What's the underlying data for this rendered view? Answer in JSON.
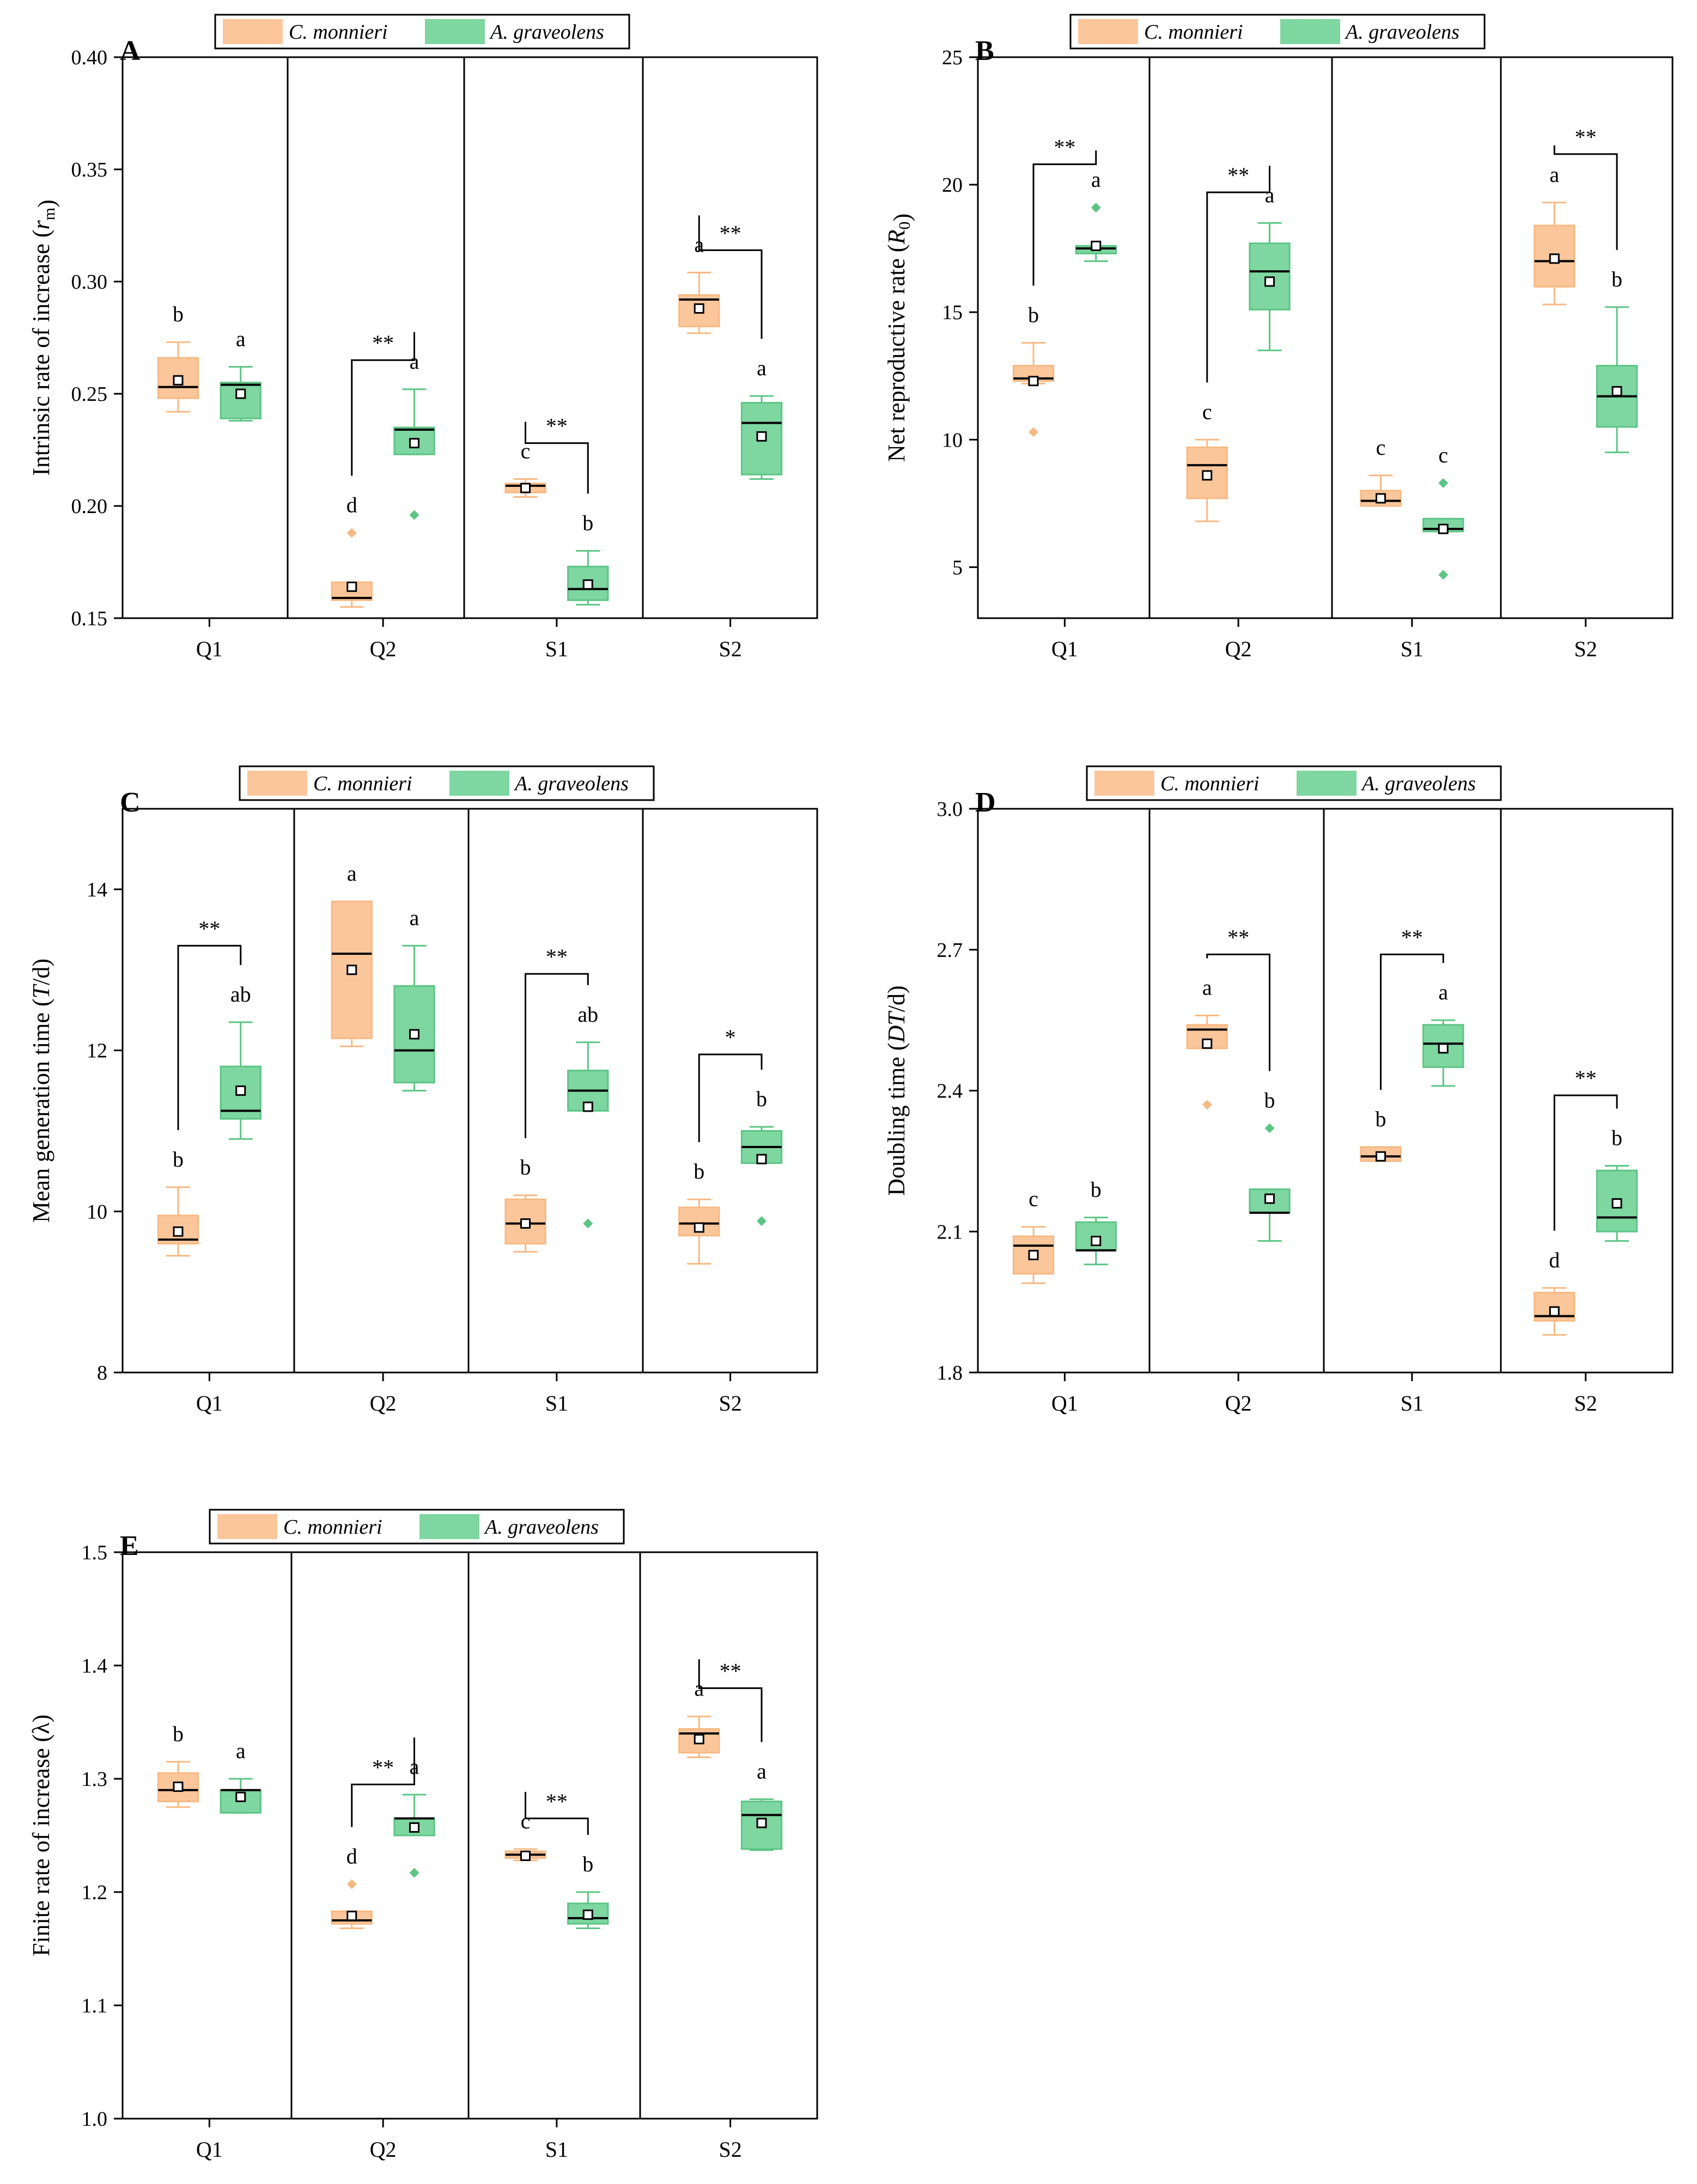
{
  "legend": {
    "series_a": "C. monnieri",
    "series_b": "A. graveolens"
  },
  "colors": {
    "series_a_fill": "#fcc69b",
    "series_a_stroke": "#f7b983",
    "series_b_fill": "#7ed6a0",
    "series_b_stroke": "#5cc585",
    "axis": "#000000"
  },
  "chart_data": [
    {
      "type": "box",
      "panel": "A",
      "categories": [
        "Q1",
        "Q2",
        "S1",
        "S2"
      ],
      "ylabel_pre": "Intrinsic rate of increase (",
      "ylabel_it": "r",
      "ylabel_sub": "m",
      "ylabel_post": ")",
      "ylim": [
        0.15,
        0.4
      ],
      "yticks": [
        "0.15",
        "0.20",
        "0.25",
        "0.30",
        "0.35",
        "0.40"
      ],
      "series": [
        {
          "name": "C. monnieri",
          "boxes": [
            {
              "min": 0.242,
              "q1": 0.248,
              "median": 0.253,
              "q3": 0.266,
              "max": 0.273,
              "mean": 0.256,
              "outliers": [],
              "letter": "b"
            },
            {
              "min": 0.155,
              "q1": 0.158,
              "median": 0.159,
              "q3": 0.166,
              "max": 0.166,
              "mean": 0.164,
              "outliers": [
                0.188
              ],
              "letter": "d"
            },
            {
              "min": 0.204,
              "q1": 0.206,
              "median": 0.209,
              "q3": 0.21,
              "max": 0.212,
              "mean": 0.208,
              "outliers": [],
              "letter": "c"
            },
            {
              "min": 0.277,
              "q1": 0.28,
              "median": 0.292,
              "q3": 0.294,
              "max": 0.304,
              "mean": 0.288,
              "outliers": [],
              "letter": "a"
            }
          ]
        },
        {
          "name": "A. graveolens",
          "boxes": [
            {
              "min": 0.238,
              "q1": 0.239,
              "median": 0.254,
              "q3": 0.255,
              "max": 0.262,
              "mean": 0.25,
              "outliers": [],
              "letter": "a"
            },
            {
              "min": 0.223,
              "q1": 0.223,
              "median": 0.234,
              "q3": 0.235,
              "max": 0.252,
              "mean": 0.228,
              "outliers": [
                0.196
              ],
              "letter": "a"
            },
            {
              "min": 0.156,
              "q1": 0.158,
              "median": 0.163,
              "q3": 0.173,
              "max": 0.18,
              "mean": 0.165,
              "outliers": [],
              "letter": "b"
            },
            {
              "min": 0.212,
              "q1": 0.214,
              "median": 0.237,
              "q3": 0.246,
              "max": 0.249,
              "mean": 0.231,
              "outliers": [],
              "letter": "a"
            }
          ]
        }
      ],
      "significance": [
        {
          "group": 1,
          "label": "**",
          "level": 0.265
        },
        {
          "group": 2,
          "label": "**",
          "level": 0.228
        },
        {
          "group": 3,
          "label": "**",
          "level": 0.314
        }
      ]
    },
    {
      "type": "box",
      "panel": "B",
      "categories": [
        "Q1",
        "Q2",
        "S1",
        "S2"
      ],
      "ylabel_pre": "Net reproductive rate (",
      "ylabel_it": "R",
      "ylabel_sub": "0",
      "ylabel_post": ")",
      "ylim": [
        3,
        25
      ],
      "yticks": [
        "5",
        "10",
        "15",
        "20",
        "25"
      ],
      "series": [
        {
          "name": "C. monnieri",
          "boxes": [
            {
              "min": 12.2,
              "q1": 12.3,
              "median": 12.4,
              "q3": 12.9,
              "max": 13.8,
              "mean": 12.3,
              "outliers": [
                10.3
              ],
              "letter": "b"
            },
            {
              "min": 6.8,
              "q1": 7.7,
              "median": 9.0,
              "q3": 9.7,
              "max": 10.0,
              "mean": 8.6,
              "outliers": [],
              "letter": "c"
            },
            {
              "min": 7.4,
              "q1": 7.4,
              "median": 7.6,
              "q3": 8.0,
              "max": 8.6,
              "mean": 7.7,
              "outliers": [],
              "letter": "c"
            },
            {
              "min": 15.3,
              "q1": 16.0,
              "median": 17.0,
              "q3": 18.4,
              "max": 19.3,
              "mean": 17.1,
              "outliers": [],
              "letter": "a"
            }
          ]
        },
        {
          "name": "A. graveolens",
          "boxes": [
            {
              "min": 17.0,
              "q1": 17.3,
              "median": 17.5,
              "q3": 17.6,
              "max": 17.6,
              "mean": 17.6,
              "outliers": [
                19.1
              ],
              "letter": "a"
            },
            {
              "min": 13.5,
              "q1": 15.1,
              "median": 16.6,
              "q3": 17.7,
              "max": 18.5,
              "mean": 16.2,
              "outliers": [],
              "letter": "a"
            },
            {
              "min": 6.4,
              "q1": 6.4,
              "median": 6.5,
              "q3": 6.9,
              "max": 6.9,
              "mean": 6.5,
              "outliers": [
                8.3,
                4.7
              ],
              "letter": "c"
            },
            {
              "min": 9.5,
              "q1": 10.5,
              "median": 11.7,
              "q3": 12.9,
              "max": 15.2,
              "mean": 11.9,
              "outliers": [],
              "letter": "b"
            }
          ]
        }
      ],
      "significance": [
        {
          "group": 0,
          "label": "**",
          "level": 20.8
        },
        {
          "group": 1,
          "label": "**",
          "level": 19.7
        },
        {
          "group": 3,
          "label": "**",
          "level": 21.2
        }
      ]
    },
    {
      "type": "box",
      "panel": "C",
      "categories": [
        "Q1",
        "Q2",
        "S1",
        "S2"
      ],
      "ylabel_pre": "Mean generation time (",
      "ylabel_it": "T",
      "ylabel_sub": "",
      "ylabel_post": "/d)",
      "ylim": [
        8,
        15
      ],
      "yticks": [
        "8",
        "10",
        "12",
        "14"
      ],
      "series": [
        {
          "name": "C. monnieri",
          "boxes": [
            {
              "min": 9.45,
              "q1": 9.6,
              "median": 9.65,
              "q3": 9.95,
              "max": 10.3,
              "mean": 9.75,
              "outliers": [],
              "letter": "b"
            },
            {
              "min": 12.05,
              "q1": 12.15,
              "median": 13.2,
              "q3": 13.85,
              "max": 13.85,
              "mean": 13.0,
              "outliers": [],
              "letter": "a"
            },
            {
              "min": 9.5,
              "q1": 9.6,
              "median": 9.85,
              "q3": 10.15,
              "max": 10.2,
              "mean": 9.85,
              "outliers": [],
              "letter": "b"
            },
            {
              "min": 9.35,
              "q1": 9.7,
              "median": 9.85,
              "q3": 10.05,
              "max": 10.15,
              "mean": 9.8,
              "outliers": [],
              "letter": "b"
            }
          ]
        },
        {
          "name": "A. graveolens",
          "boxes": [
            {
              "min": 10.9,
              "q1": 11.15,
              "median": 11.25,
              "q3": 11.8,
              "max": 12.35,
              "mean": 11.5,
              "outliers": [],
              "letter": "ab"
            },
            {
              "min": 11.5,
              "q1": 11.6,
              "median": 12.0,
              "q3": 12.8,
              "max": 13.3,
              "mean": 12.2,
              "outliers": [],
              "letter": "a"
            },
            {
              "min": 11.25,
              "q1": 11.25,
              "median": 11.5,
              "q3": 11.75,
              "max": 12.1,
              "mean": 11.3,
              "outliers": [
                9.85
              ],
              "letter": "ab"
            },
            {
              "min": 10.6,
              "q1": 10.6,
              "median": 10.8,
              "q3": 11.0,
              "max": 11.05,
              "mean": 10.65,
              "outliers": [
                9.88
              ],
              "letter": "b"
            }
          ]
        }
      ],
      "significance": [
        {
          "group": 0,
          "label": "**",
          "level": 13.3
        },
        {
          "group": 2,
          "label": "**",
          "level": 12.95
        },
        {
          "group": 3,
          "label": "*",
          "level": 11.95
        }
      ]
    },
    {
      "type": "box",
      "panel": "D",
      "categories": [
        "Q1",
        "Q2",
        "S1",
        "S2"
      ],
      "ylabel_pre": "Doubling time (",
      "ylabel_it": "DT",
      "ylabel_sub": "",
      "ylabel_post": "/d)",
      "ylim": [
        1.8,
        3.0
      ],
      "yticks": [
        "1.8",
        "2.1",
        "2.4",
        "2.7",
        "3.0"
      ],
      "series": [
        {
          "name": "C. monnieri",
          "boxes": [
            {
              "min": 1.99,
              "q1": 2.01,
              "median": 2.07,
              "q3": 2.09,
              "max": 2.11,
              "mean": 2.05,
              "outliers": [],
              "letter": "c"
            },
            {
              "min": 2.49,
              "q1": 2.49,
              "median": 2.53,
              "q3": 2.54,
              "max": 2.56,
              "mean": 2.5,
              "outliers": [
                2.37
              ],
              "letter": "a"
            },
            {
              "min": 2.25,
              "q1": 2.25,
              "median": 2.26,
              "q3": 2.28,
              "max": 2.28,
              "mean": 2.26,
              "outliers": [],
              "letter": "b"
            },
            {
              "min": 1.88,
              "q1": 1.91,
              "median": 1.92,
              "q3": 1.97,
              "max": 1.98,
              "mean": 1.93,
              "outliers": [],
              "letter": "d"
            }
          ]
        },
        {
          "name": "A. graveolens",
          "boxes": [
            {
              "min": 2.03,
              "q1": 2.06,
              "median": 2.06,
              "q3": 2.12,
              "max": 2.13,
              "mean": 2.08,
              "outliers": [],
              "letter": "b"
            },
            {
              "min": 2.08,
              "q1": 2.14,
              "median": 2.14,
              "q3": 2.19,
              "max": 2.19,
              "mean": 2.17,
              "outliers": [
                2.32
              ],
              "letter": "b"
            },
            {
              "min": 2.41,
              "q1": 2.45,
              "median": 2.5,
              "q3": 2.54,
              "max": 2.55,
              "mean": 2.49,
              "outliers": [],
              "letter": "a"
            },
            {
              "min": 2.08,
              "q1": 2.1,
              "median": 2.13,
              "q3": 2.23,
              "max": 2.24,
              "mean": 2.16,
              "outliers": [],
              "letter": "b"
            }
          ]
        }
      ],
      "significance": [
        {
          "group": 1,
          "label": "**",
          "level": 2.69
        },
        {
          "group": 2,
          "label": "**",
          "level": 2.69
        },
        {
          "group": 3,
          "label": "**",
          "level": 2.39
        }
      ]
    },
    {
      "type": "box",
      "panel": "E",
      "categories": [
        "Q1",
        "Q2",
        "S1",
        "S2"
      ],
      "ylabel_pre": "Finite rate of increase (λ)",
      "ylabel_it": "",
      "ylabel_sub": "",
      "ylabel_post": "",
      "ylim": [
        1.0,
        1.5
      ],
      "yticks": [
        "1.0",
        "1.1",
        "1.2",
        "1.3",
        "1.4",
        "1.5"
      ],
      "series": [
        {
          "name": "C. monnieri",
          "boxes": [
            {
              "min": 1.275,
              "q1": 1.28,
              "median": 1.29,
              "q3": 1.305,
              "max": 1.315,
              "mean": 1.293,
              "outliers": [],
              "letter": "b"
            },
            {
              "min": 1.168,
              "q1": 1.172,
              "median": 1.175,
              "q3": 1.183,
              "max": 1.183,
              "mean": 1.179,
              "outliers": [
                1.207
              ],
              "letter": "d"
            },
            {
              "min": 1.228,
              "q1": 1.23,
              "median": 1.233,
              "q3": 1.236,
              "max": 1.238,
              "mean": 1.232,
              "outliers": [],
              "letter": "c"
            },
            {
              "min": 1.319,
              "q1": 1.323,
              "median": 1.34,
              "q3": 1.344,
              "max": 1.355,
              "mean": 1.335,
              "outliers": [],
              "letter": "a"
            }
          ]
        },
        {
          "name": "A. graveolens",
          "boxes": [
            {
              "min": 1.27,
              "q1": 1.27,
              "median": 1.29,
              "q3": 1.29,
              "max": 1.3,
              "mean": 1.284,
              "outliers": [],
              "letter": "a"
            },
            {
              "min": 1.25,
              "q1": 1.25,
              "median": 1.265,
              "q3": 1.265,
              "max": 1.286,
              "mean": 1.257,
              "outliers": [
                1.217
              ],
              "letter": "a"
            },
            {
              "min": 1.168,
              "q1": 1.172,
              "median": 1.177,
              "q3": 1.19,
              "max": 1.2,
              "mean": 1.18,
              "outliers": [],
              "letter": "b"
            },
            {
              "min": 1.237,
              "q1": 1.238,
              "median": 1.268,
              "q3": 1.28,
              "max": 1.282,
              "mean": 1.261,
              "outliers": [],
              "letter": "a"
            }
          ]
        }
      ],
      "significance": [
        {
          "group": 1,
          "label": "**",
          "level": 1.295
        },
        {
          "group": 2,
          "label": "**",
          "level": 1.265
        },
        {
          "group": 3,
          "label": "**",
          "level": 1.38
        }
      ]
    }
  ]
}
